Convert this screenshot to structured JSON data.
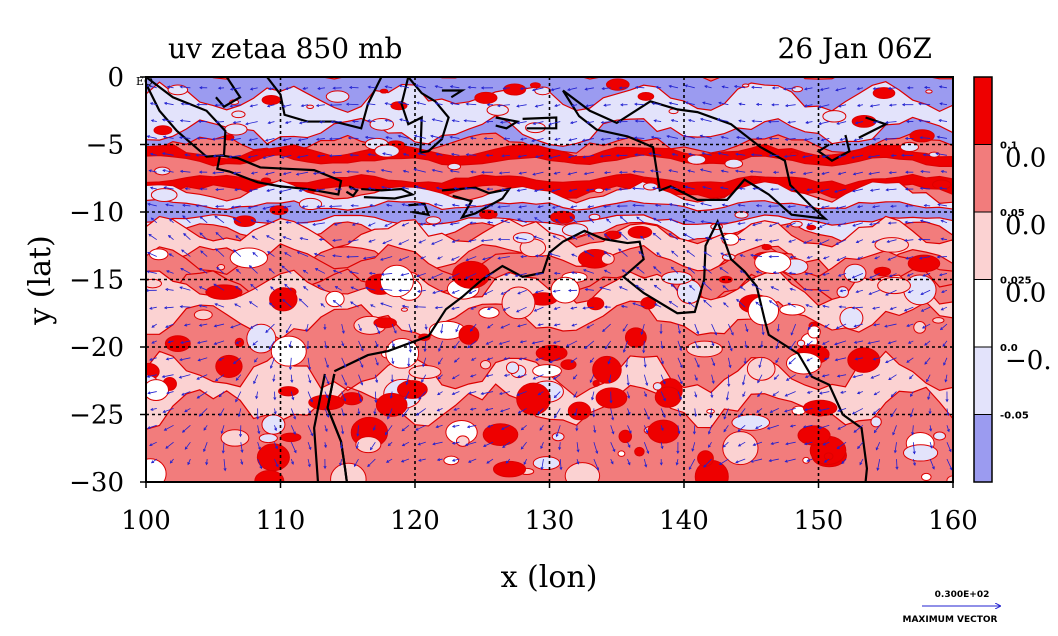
{
  "chart_data": {
    "type": "heatmap",
    "title": "uv zetaa 850 mb",
    "time_label": "26 Jan 06Z",
    "xlabel": "x (lon)",
    "ylabel": "y (lat)",
    "xlim": [
      100,
      160
    ],
    "ylim": [
      -30,
      0
    ],
    "x_ticks": [
      "100",
      "110",
      "120",
      "130",
      "140",
      "150",
      "160"
    ],
    "y_ticks": [
      "0",
      "−5",
      "−10",
      "−15",
      "−20",
      "−25",
      "−30"
    ],
    "y_top_annotation": "EQ",
    "grid": true,
    "colorbar": {
      "levels": [
        -0.05,
        0.0,
        0.025,
        0.05,
        0.1
      ],
      "level_labels": [
        "-0.05",
        "0.0",
        "0.025",
        "0.05",
        "0.1"
      ],
      "side_labels": [
        "0.0",
        "0.0",
        "0.0",
        "−0."
      ],
      "colors": [
        "#9b9bf0",
        "#e3e3fb",
        "#ffffff",
        "#fbd2d2",
        "#f27c7c",
        "#ee0000"
      ]
    },
    "vector_legend": {
      "value_label": "0.300E+02",
      "caption": "MAXIMUM VECTOR"
    },
    "colors": {
      "strong_positive": "#ee0000",
      "positive": "#f27c7c",
      "weak_positive": "#fbd2d2",
      "neutral": "#ffffff",
      "weak_negative": "#e3e3fb",
      "negative": "#9b9bf0",
      "contour": "#dd0000",
      "vector": "#2020d0",
      "coast": "#000000"
    }
  }
}
